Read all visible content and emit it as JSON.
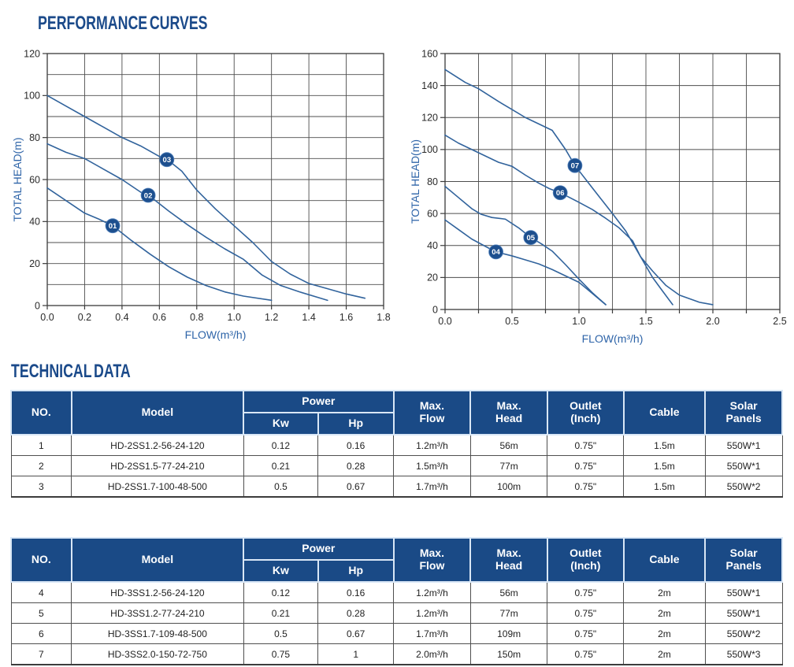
{
  "titles": {
    "performance": "PERFORMANCE CURVES",
    "technical": "TECHNICAL DATA"
  },
  "colors": {
    "heading_blue": "#1b4a8a",
    "table_header_bg": "#1a4a86",
    "header_divider": "#d9e7f6",
    "curve_blue": "#31639c",
    "marker_fill": "#1d4f8e",
    "marker_ring": "#5584bd",
    "grid_gray": "#4d4d4d",
    "plot_border": "#3a3a3a",
    "axis_title_blue": "#2e64a8",
    "tick_text": "#2a2a2a"
  },
  "chart_data": [
    {
      "type": "line",
      "title": "",
      "xlabel": "FLOW(m³/h)",
      "ylabel": "TOTAL HEAD(m)",
      "xlim": [
        0,
        1.8
      ],
      "ylim": [
        0,
        120
      ],
      "xtick_step": 0.2,
      "ytick_step": 20,
      "xgrid_step": 0.2,
      "ygrid_step": 10,
      "grid": "on",
      "legend": "numbered-markers-on-curves",
      "series": [
        {
          "name": "01",
          "label_at": [
            0.35,
            38
          ],
          "points": [
            [
              0,
              56
            ],
            [
              0.1,
              50
            ],
            [
              0.2,
              44
            ],
            [
              0.28,
              41
            ],
            [
              0.35,
              38
            ],
            [
              0.45,
              31
            ],
            [
              0.55,
              24.5
            ],
            [
              0.65,
              18.5
            ],
            [
              0.75,
              13.5
            ],
            [
              0.85,
              9.5
            ],
            [
              0.95,
              6.5
            ],
            [
              1.05,
              4.5
            ],
            [
              1.2,
              2.5
            ]
          ]
        },
        {
          "name": "02",
          "label_at": [
            0.54,
            52.5
          ],
          "points": [
            [
              0,
              77
            ],
            [
              0.1,
              73
            ],
            [
              0.2,
              70
            ],
            [
              0.3,
              65
            ],
            [
              0.4,
              60
            ],
            [
              0.5,
              54
            ],
            [
              0.55,
              52
            ],
            [
              0.65,
              45
            ],
            [
              0.75,
              38.5
            ],
            [
              0.85,
              32.5
            ],
            [
              0.95,
              27
            ],
            [
              1.05,
              22
            ],
            [
              1.15,
              14.5
            ],
            [
              1.25,
              9.5
            ],
            [
              1.35,
              6.5
            ],
            [
              1.5,
              2.5
            ]
          ]
        },
        {
          "name": "03",
          "label_at": [
            0.64,
            69.5
          ],
          "points": [
            [
              0,
              100
            ],
            [
              0.1,
              95
            ],
            [
              0.2,
              90
            ],
            [
              0.3,
              85
            ],
            [
              0.4,
              80
            ],
            [
              0.5,
              76
            ],
            [
              0.6,
              71
            ],
            [
              0.65,
              69
            ],
            [
              0.72,
              64
            ],
            [
              0.8,
              55
            ],
            [
              0.9,
              46
            ],
            [
              1.0,
              38
            ],
            [
              1.1,
              30
            ],
            [
              1.2,
              21
            ],
            [
              1.3,
              15
            ],
            [
              1.4,
              10.5
            ],
            [
              1.5,
              8
            ],
            [
              1.6,
              5.5
            ],
            [
              1.7,
              3.5
            ]
          ]
        }
      ]
    },
    {
      "type": "line",
      "title": "",
      "xlabel": "FLOW(m³/h)",
      "ylabel": "TOTAL HEAD(m)",
      "xlim": [
        0,
        2.5
      ],
      "ylim": [
        0,
        160
      ],
      "xtick_step": 0.5,
      "ytick_step": 20,
      "xgrid_step": 0.25,
      "ygrid_step": 20,
      "grid": "on",
      "legend": "numbered-markers-on-curves",
      "series": [
        {
          "name": "04",
          "label_at": [
            0.38,
            36
          ],
          "points": [
            [
              0,
              56
            ],
            [
              0.1,
              50
            ],
            [
              0.2,
              44
            ],
            [
              0.3,
              39.5
            ],
            [
              0.38,
              36
            ],
            [
              0.5,
              33.5
            ],
            [
              0.6,
              31
            ],
            [
              0.7,
              28.5
            ],
            [
              0.8,
              25
            ],
            [
              0.9,
              21
            ],
            [
              1.0,
              17
            ],
            [
              1.1,
              10
            ],
            [
              1.2,
              3
            ]
          ]
        },
        {
          "name": "05",
          "label_at": [
            0.64,
            45
          ],
          "points": [
            [
              0,
              77
            ],
            [
              0.1,
              70
            ],
            [
              0.2,
              63
            ],
            [
              0.27,
              59.5
            ],
            [
              0.35,
              57.5
            ],
            [
              0.45,
              56.5
            ],
            [
              0.55,
              51
            ],
            [
              0.64,
              45
            ],
            [
              0.72,
              41
            ],
            [
              0.8,
              36.5
            ],
            [
              0.9,
              28
            ],
            [
              1.0,
              19
            ],
            [
              1.1,
              10.5
            ],
            [
              1.2,
              3
            ]
          ]
        },
        {
          "name": "06",
          "label_at": [
            0.86,
            73
          ],
          "points": [
            [
              0,
              109
            ],
            [
              0.1,
              104
            ],
            [
              0.2,
              100
            ],
            [
              0.3,
              96
            ],
            [
              0.4,
              92
            ],
            [
              0.5,
              89.5
            ],
            [
              0.6,
              84
            ],
            [
              0.7,
              79
            ],
            [
              0.78,
              75.5
            ],
            [
              0.86,
              73
            ],
            [
              1.0,
              67
            ],
            [
              1.1,
              62.5
            ],
            [
              1.2,
              57
            ],
            [
              1.3,
              51
            ],
            [
              1.4,
              43
            ],
            [
              1.46,
              33
            ],
            [
              1.55,
              20
            ],
            [
              1.62,
              12
            ],
            [
              1.7,
              3
            ]
          ]
        },
        {
          "name": "07",
          "label_at": [
            0.97,
            90
          ],
          "points": [
            [
              0,
              150
            ],
            [
              0.15,
              142
            ],
            [
              0.25,
              138
            ],
            [
              0.4,
              130
            ],
            [
              0.5,
              125
            ],
            [
              0.6,
              120
            ],
            [
              0.7,
              116
            ],
            [
              0.8,
              112
            ],
            [
              0.9,
              100
            ],
            [
              0.97,
              90
            ],
            [
              1.1,
              76
            ],
            [
              1.25,
              60
            ],
            [
              1.35,
              49
            ],
            [
              1.46,
              33
            ],
            [
              1.55,
              24
            ],
            [
              1.65,
              15
            ],
            [
              1.75,
              9
            ],
            [
              1.9,
              4.5
            ],
            [
              2.0,
              3
            ]
          ]
        }
      ]
    }
  ],
  "table_headers": {
    "no": "NO.",
    "model": "Model",
    "power": "Power",
    "kw": "Kw",
    "hp": "Hp",
    "max_flow": "Max.\nFlow",
    "max_head": "Max.\nHead",
    "outlet": "Outlet\n(Inch)",
    "cable": "Cable",
    "solar": "Solar\nPanels"
  },
  "tables": [
    {
      "rows": [
        [
          "1",
          "HD-2SS1.2-56-24-120",
          "0.12",
          "0.16",
          "1.2m³/h",
          "56m",
          "0.75\"",
          "1.5m",
          "550W*1"
        ],
        [
          "2",
          "HD-2SS1.5-77-24-210",
          "0.21",
          "0.28",
          "1.5m³/h",
          "77m",
          "0.75\"",
          "1.5m",
          "550W*1"
        ],
        [
          "3",
          "HD-2SS1.7-100-48-500",
          "0.5",
          "0.67",
          "1.7m³/h",
          "100m",
          "0.75\"",
          "1.5m",
          "550W*2"
        ]
      ]
    },
    {
      "rows": [
        [
          "4",
          "HD-3SS1.2-56-24-120",
          "0.12",
          "0.16",
          "1.2m³/h",
          "56m",
          "0.75\"",
          "2m",
          "550W*1"
        ],
        [
          "5",
          "HD-3SS1.2-77-24-210",
          "0.21",
          "0.28",
          "1.2m³/h",
          "77m",
          "0.75\"",
          "2m",
          "550W*1"
        ],
        [
          "6",
          "HD-3SS1.7-109-48-500",
          "0.5",
          "0.67",
          "1.7m³/h",
          "109m",
          "0.75\"",
          "2m",
          "550W*2"
        ],
        [
          "7",
          "HD-3SS2.0-150-72-750",
          "0.75",
          "1",
          "2.0m³/h",
          "150m",
          "0.75\"",
          "2m",
          "550W*3"
        ]
      ]
    }
  ]
}
